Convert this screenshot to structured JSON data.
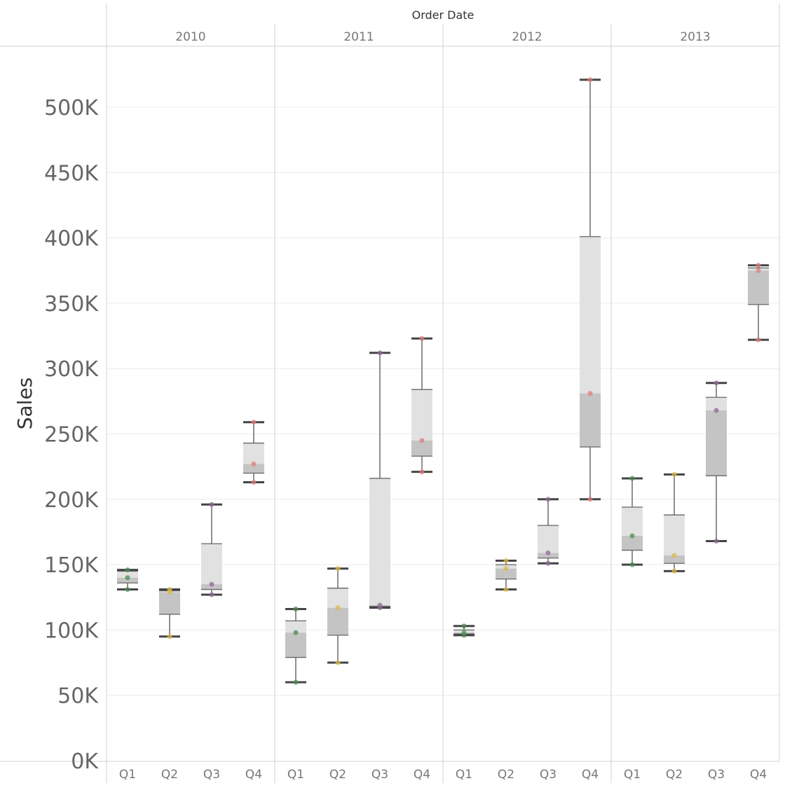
{
  "chart_data": {
    "type": "boxplot",
    "header": "Order Date",
    "ylabel": "Sales",
    "ylim": [
      0,
      540000
    ],
    "yticks": [
      0,
      50000,
      100000,
      150000,
      200000,
      250000,
      300000,
      350000,
      400000,
      450000,
      500000
    ],
    "ytick_labels": [
      "0K",
      "50K",
      "100K",
      "150K",
      "200K",
      "250K",
      "300K",
      "350K",
      "400K",
      "450K",
      "500K"
    ],
    "years": [
      "2010",
      "2011",
      "2012",
      "2013"
    ],
    "quarters": [
      "Q1",
      "Q2",
      "Q3",
      "Q4"
    ],
    "point_colors": {
      "Q1": "#4e8a55",
      "Q2": "#d8b84a",
      "Q3": "#8d6b94",
      "Q4": "#de7e7b"
    },
    "boxes": [
      {
        "year": "2010",
        "quarter": "Q1",
        "min": 131000,
        "q1": 136000,
        "median": 140000,
        "q3": 145000,
        "max": 146000,
        "points": [
          131000,
          140000,
          146000
        ]
      },
      {
        "year": "2010",
        "quarter": "Q2",
        "min": 95000,
        "q1": 112000,
        "median": 129000,
        "q3": 130000,
        "max": 131000,
        "points": [
          95000,
          129000,
          131000
        ]
      },
      {
        "year": "2010",
        "quarter": "Q3",
        "min": 127000,
        "q1": 131000,
        "median": 135000,
        "q3": 166000,
        "max": 196000,
        "points": [
          127000,
          135000,
          196000
        ]
      },
      {
        "year": "2010",
        "quarter": "Q4",
        "min": 213000,
        "q1": 220000,
        "median": 227000,
        "q3": 243000,
        "max": 259000,
        "points": [
          213000,
          227000,
          259000
        ]
      },
      {
        "year": "2011",
        "quarter": "Q1",
        "min": 60000,
        "q1": 79000,
        "median": 98000,
        "q3": 107000,
        "max": 116000,
        "points": [
          60000,
          98000,
          116000
        ]
      },
      {
        "year": "2011",
        "quarter": "Q2",
        "min": 75000,
        "q1": 96000,
        "median": 117000,
        "q3": 132000,
        "max": 147000,
        "points": [
          75000,
          117000,
          147000
        ]
      },
      {
        "year": "2011",
        "quarter": "Q3",
        "min": 117000,
        "q1": 118000,
        "median": 119000,
        "q3": 216000,
        "max": 312000,
        "points": [
          117000,
          119000,
          312000
        ]
      },
      {
        "year": "2011",
        "quarter": "Q4",
        "min": 221000,
        "q1": 233000,
        "median": 245000,
        "q3": 284000,
        "max": 323000,
        "points": [
          221000,
          245000,
          323000
        ]
      },
      {
        "year": "2012",
        "quarter": "Q1",
        "min": 96000,
        "q1": 97000,
        "median": 98000,
        "q3": 100000,
        "max": 103000,
        "points": [
          96000,
          98000,
          103000
        ]
      },
      {
        "year": "2012",
        "quarter": "Q2",
        "min": 131000,
        "q1": 139000,
        "median": 147000,
        "q3": 150000,
        "max": 153000,
        "points": [
          131000,
          147000,
          153000
        ]
      },
      {
        "year": "2012",
        "quarter": "Q3",
        "min": 151000,
        "q1": 155000,
        "median": 159000,
        "q3": 180000,
        "max": 200000,
        "points": [
          151000,
          159000,
          200000
        ]
      },
      {
        "year": "2012",
        "quarter": "Q4",
        "min": 200000,
        "q1": 240000,
        "median": 281000,
        "q3": 401000,
        "max": 521000,
        "points": [
          200000,
          281000,
          521000
        ]
      },
      {
        "year": "2013",
        "quarter": "Q1",
        "min": 150000,
        "q1": 161000,
        "median": 172000,
        "q3": 194000,
        "max": 216000,
        "points": [
          150000,
          172000,
          216000
        ]
      },
      {
        "year": "2013",
        "quarter": "Q2",
        "min": 145000,
        "q1": 151000,
        "median": 157000,
        "q3": 188000,
        "max": 219000,
        "points": [
          145000,
          157000,
          219000
        ]
      },
      {
        "year": "2013",
        "quarter": "Q3",
        "min": 168000,
        "q1": 218000,
        "median": 268000,
        "q3": 278000,
        "max": 289000,
        "points": [
          168000,
          268000,
          289000
        ]
      },
      {
        "year": "2013",
        "quarter": "Q4",
        "min": 322000,
        "q1": 349000,
        "median": 375000,
        "q3": 377000,
        "max": 379000,
        "points": [
          322000,
          375000,
          379000
        ]
      }
    ]
  }
}
